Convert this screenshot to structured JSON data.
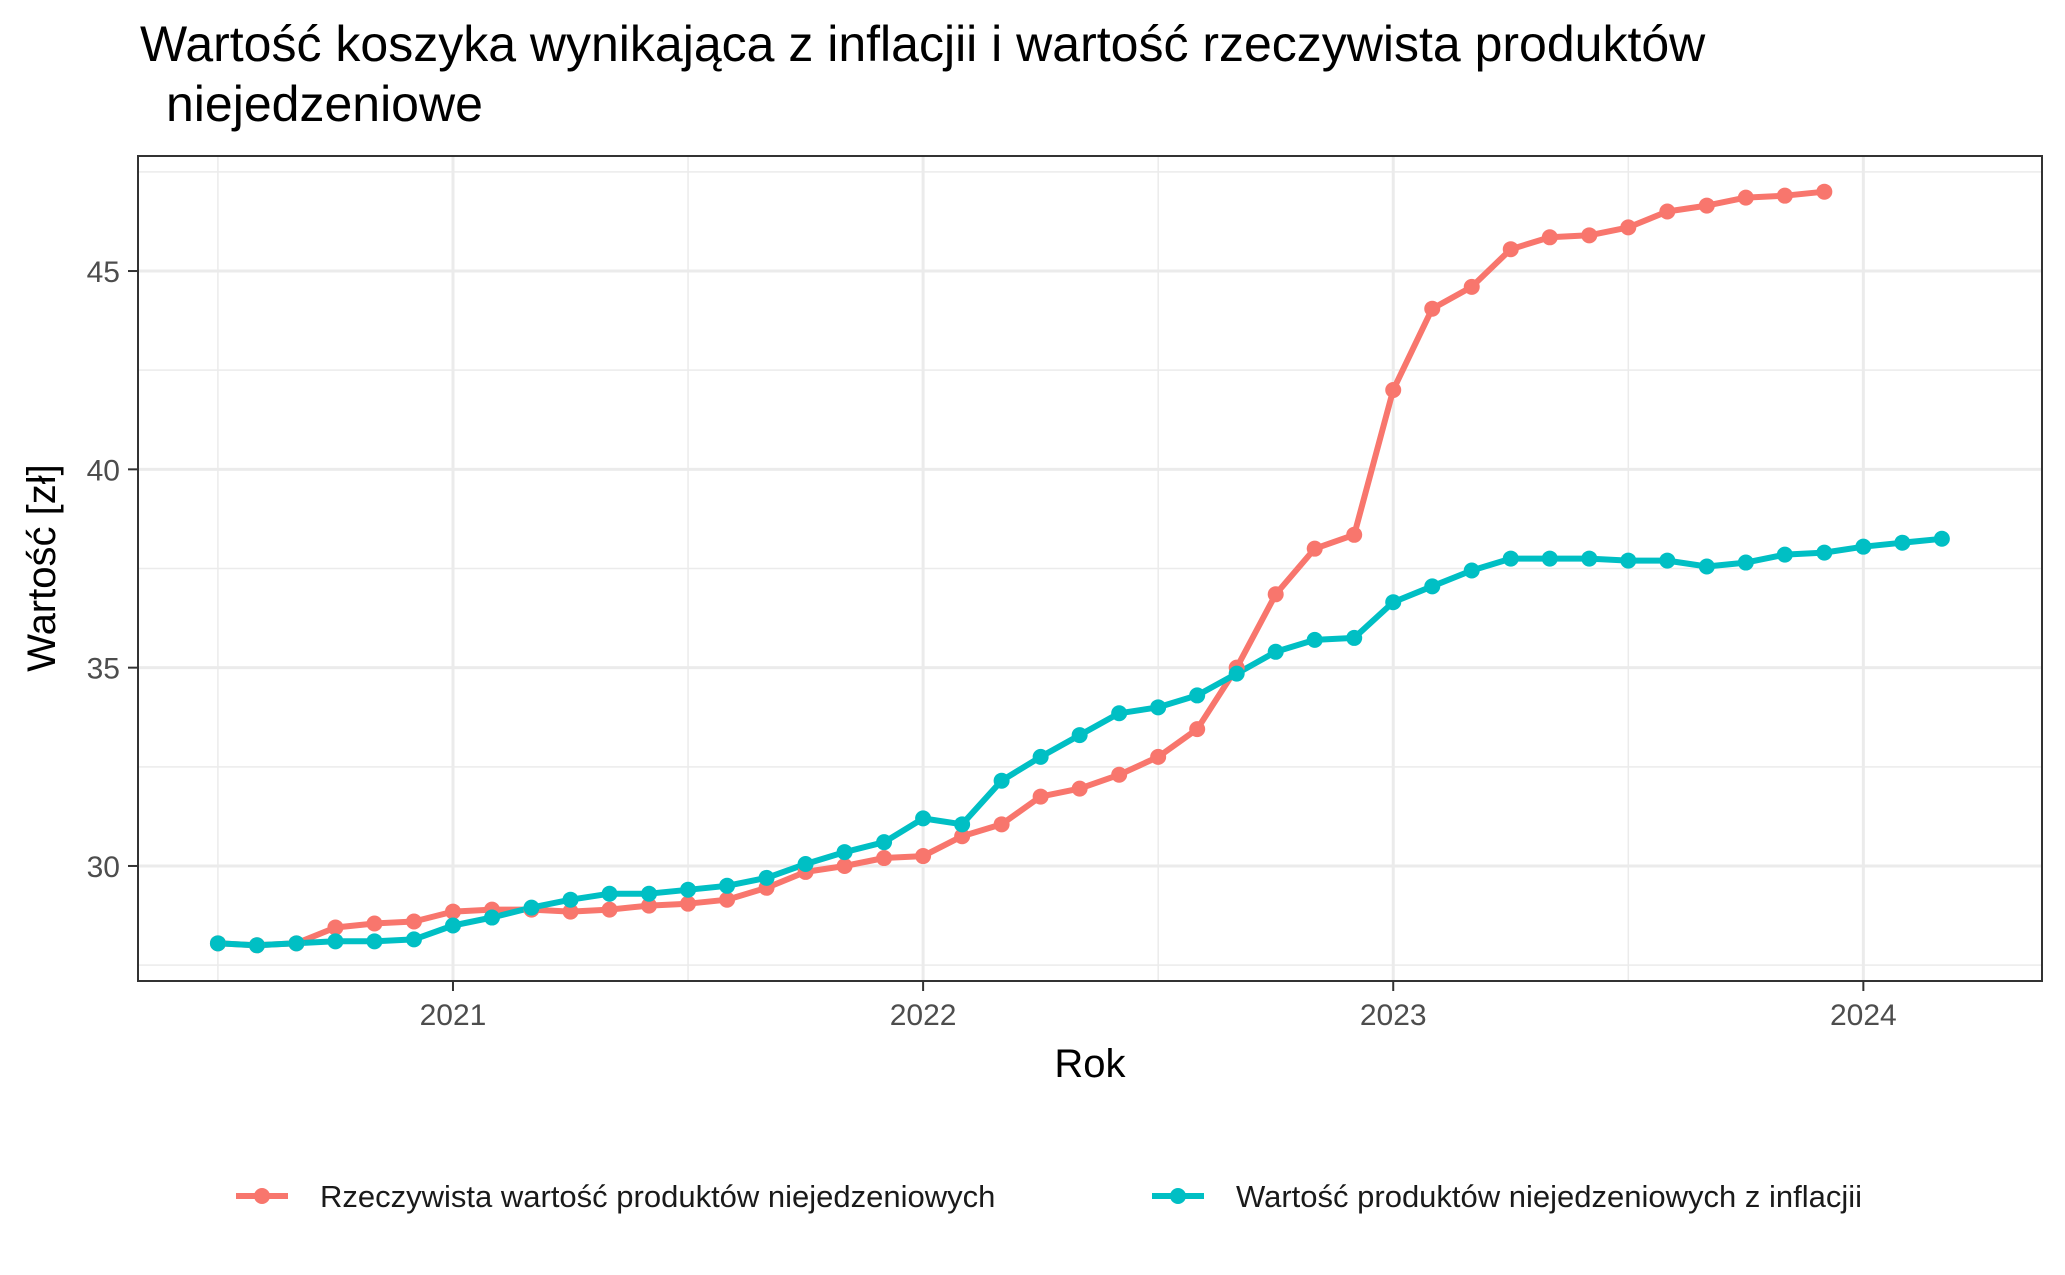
{
  "chart_data": {
    "type": "line",
    "title_lines": [
      "Wartość koszyka wynikająca z inflacjii i wartość rzeczywista produktów",
      "niejedzeniowe"
    ],
    "xlabel": "Rok",
    "ylabel": "Wartość [zł]",
    "xlim": [
      2020.33,
      2024.38
    ],
    "ylim": [
      27.1,
      47.9
    ],
    "x_ticks": [
      {
        "value": 2021,
        "label": "2021"
      },
      {
        "value": 2022,
        "label": "2022"
      },
      {
        "value": 2023,
        "label": "2023"
      },
      {
        "value": 2024,
        "label": "2024"
      }
    ],
    "y_ticks": [
      {
        "value": 30,
        "label": "30"
      },
      {
        "value": 35,
        "label": "35"
      },
      {
        "value": 40,
        "label": "40"
      },
      {
        "value": 45,
        "label": "45"
      }
    ],
    "grid": true,
    "legend_position": "bottom",
    "series": [
      {
        "name": "Rzeczywista wartość produktów niejedzeniowych",
        "color": "#F8766D",
        "x": [
          2020.5,
          2020.583,
          2020.667,
          2020.75,
          2020.833,
          2020.917,
          2021.0,
          2021.083,
          2021.167,
          2021.25,
          2021.333,
          2021.417,
          2021.5,
          2021.583,
          2021.667,
          2021.75,
          2021.833,
          2021.917,
          2022.0,
          2022.083,
          2022.167,
          2022.25,
          2022.333,
          2022.417,
          2022.5,
          2022.583,
          2022.667,
          2022.75,
          2022.833,
          2022.917,
          2023.0,
          2023.083,
          2023.167,
          2023.25,
          2023.333,
          2023.417,
          2023.5,
          2023.583,
          2023.667,
          2023.75,
          2023.833,
          2023.917
        ],
        "values": [
          28.05,
          28.0,
          28.05,
          28.45,
          28.55,
          28.6,
          28.85,
          28.9,
          28.9,
          28.85,
          28.9,
          29.0,
          29.05,
          29.15,
          29.45,
          29.85,
          30.0,
          30.2,
          30.25,
          30.75,
          31.05,
          31.75,
          31.95,
          32.3,
          32.75,
          33.45,
          35.0,
          36.85,
          38.0,
          38.35,
          42.0,
          44.05,
          44.6,
          45.55,
          45.85,
          45.9,
          46.1,
          46.5,
          46.65,
          46.85,
          46.9,
          47.0
        ]
      },
      {
        "name": "Wartość produktów niejedzeniowych z inflacjii",
        "color": "#00BFC4",
        "x": [
          2020.5,
          2020.583,
          2020.667,
          2020.75,
          2020.833,
          2020.917,
          2021.0,
          2021.083,
          2021.167,
          2021.25,
          2021.333,
          2021.417,
          2021.5,
          2021.583,
          2021.667,
          2021.75,
          2021.833,
          2021.917,
          2022.0,
          2022.083,
          2022.167,
          2022.25,
          2022.333,
          2022.417,
          2022.5,
          2022.583,
          2022.667,
          2022.75,
          2022.833,
          2022.917,
          2023.0,
          2023.083,
          2023.167,
          2023.25,
          2023.333,
          2023.417,
          2023.5,
          2023.583,
          2023.667,
          2023.75,
          2023.833,
          2023.917,
          2024.0,
          2024.083,
          2024.167
        ],
        "values": [
          28.05,
          28.0,
          28.05,
          28.1,
          28.1,
          28.15,
          28.5,
          28.7,
          28.95,
          29.15,
          29.3,
          29.3,
          29.4,
          29.5,
          29.7,
          30.05,
          30.35,
          30.6,
          31.2,
          31.05,
          32.15,
          32.75,
          33.3,
          33.85,
          34.0,
          34.3,
          34.85,
          35.4,
          35.7,
          35.75,
          36.65,
          37.05,
          37.45,
          37.75,
          37.75,
          37.75,
          37.7,
          37.7,
          37.55,
          37.65,
          37.85,
          37.9,
          38.05,
          38.15,
          38.25
        ]
      }
    ]
  }
}
